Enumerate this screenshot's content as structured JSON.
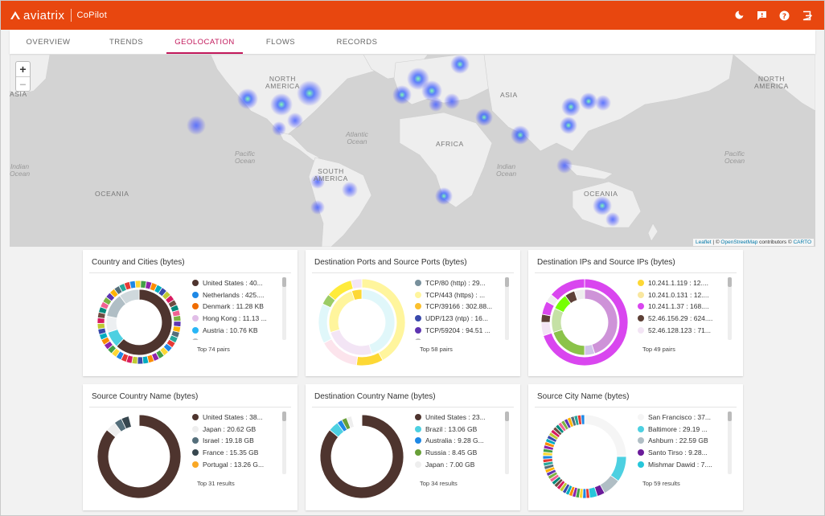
{
  "header": {
    "brand": "aviatrix",
    "product": "CoPilot",
    "icons": [
      "moon-icon",
      "feedback-icon",
      "help-icon",
      "logout-icon"
    ]
  },
  "tabs": [
    {
      "label": "Overview"
    },
    {
      "label": "Trends"
    },
    {
      "label": "Geolocation",
      "active": true
    },
    {
      "label": "Flows"
    },
    {
      "label": "Records"
    }
  ],
  "map": {
    "zoom_in": "+",
    "zoom_out": "−",
    "labels": {
      "asia_left": "ASIA",
      "north_america": "NORTH\nAMERICA",
      "south_america": "SOUTH\nAMERICA",
      "africa": "AFRICA",
      "asia": "ASIA",
      "oceania_left": "OCEANIA",
      "oceania": "OCEANIA",
      "north_america_right": "NORTH\nAMERICA"
    },
    "oceans": {
      "indian_left": "Indian\nOcean",
      "pacific": "Pacific\nOcean",
      "atlantic": "Atlantic\nOcean",
      "indian": "Indian\nOcean",
      "pacific_right": "Pacific\nOcean"
    },
    "attribution": {
      "leaflet": "Leaflet",
      "sep": " | © ",
      "osm": "OpenStreetMap",
      "contrib": " contributors © ",
      "carto": "CARTO"
    }
  },
  "cards": [
    {
      "title": "Country and Cities (bytes)",
      "legend": [
        {
          "label": "United States : 40...",
          "color": "#4e342e"
        },
        {
          "label": "Netherlands : 425....",
          "color": "#1e88e5"
        },
        {
          "label": "Denmark : 11.28 KB",
          "color": "#ef6c00"
        },
        {
          "label": "Hong Kong : 11.13 ...",
          "color": "#e1bee7"
        },
        {
          "label": "Austria : 10.76 KB",
          "color": "#29b6f6"
        },
        {
          "label": "",
          "color": "#bdbdbd"
        }
      ],
      "footer": "Top 74 pairs"
    },
    {
      "title": "Destination Ports and Source Ports (bytes)",
      "legend": [
        {
          "label": "TCP/80 (http) : 29...",
          "color": "#78909c"
        },
        {
          "label": "TCP/443 (https) : ...",
          "color": "#fff59d"
        },
        {
          "label": "TCP/39166 : 302.88...",
          "color": "#fbc02d"
        },
        {
          "label": "UDP/123 (ntp) : 16...",
          "color": "#3949ab"
        },
        {
          "label": "TCP/59204 : 94.51 ...",
          "color": "#5e35b1"
        },
        {
          "label": "",
          "color": "#bdbdbd"
        }
      ],
      "footer": "Top 58 pairs"
    },
    {
      "title": "Destination IPs and Source IPs (bytes)",
      "legend": [
        {
          "label": "10.241.1.119 : 12....",
          "color": "#fdd835"
        },
        {
          "label": "10.241.0.131 : 12....",
          "color": "#f9e79f"
        },
        {
          "label": "10.241.1.37 : 168....",
          "color": "#d946ef"
        },
        {
          "label": "52.46.156.29 : 624....",
          "color": "#5d4037"
        },
        {
          "label": "52.46.128.123 : 71...",
          "color": "#f3e5f5"
        }
      ],
      "footer": "Top 49 pairs"
    },
    {
      "title": "Source Country Name (bytes)",
      "legend": [
        {
          "label": "United States : 38...",
          "color": "#4e342e"
        },
        {
          "label": "Japan : 20.62 GB",
          "color": "#eeeeee"
        },
        {
          "label": "Israel : 19.18 GB",
          "color": "#546e7a"
        },
        {
          "label": "France : 15.35 GB",
          "color": "#37474f"
        },
        {
          "label": "Portugal : 13.26 G...",
          "color": "#f9a825"
        }
      ],
      "footer": "Top 31 results"
    },
    {
      "title": "Destination Country Name (bytes)",
      "legend": [
        {
          "label": "United States : 23...",
          "color": "#4e342e"
        },
        {
          "label": "Brazil : 13.06 GB",
          "color": "#4dd0e1"
        },
        {
          "label": "Australia : 9.28 G...",
          "color": "#1e88e5"
        },
        {
          "label": "Russia : 8.45 GB",
          "color": "#689f38"
        },
        {
          "label": "Japan : 7.00 GB",
          "color": "#eeeeee"
        }
      ],
      "footer": "Top 34 results"
    },
    {
      "title": "Source City Name (bytes)",
      "legend": [
        {
          "label": "San Francisco : 37...",
          "color": "#f5f5f5"
        },
        {
          "label": "Baltimore : 29.19 ...",
          "color": "#4dd0e1"
        },
        {
          "label": "Ashburn : 22.59 GB",
          "color": "#b0bec5"
        },
        {
          "label": "Santo Tirso : 9.28...",
          "color": "#6a1b9a"
        },
        {
          "label": "Mishmar Dawid : 7....",
          "color": "#26c6da"
        }
      ],
      "footer": "Top 59 results"
    }
  ]
}
